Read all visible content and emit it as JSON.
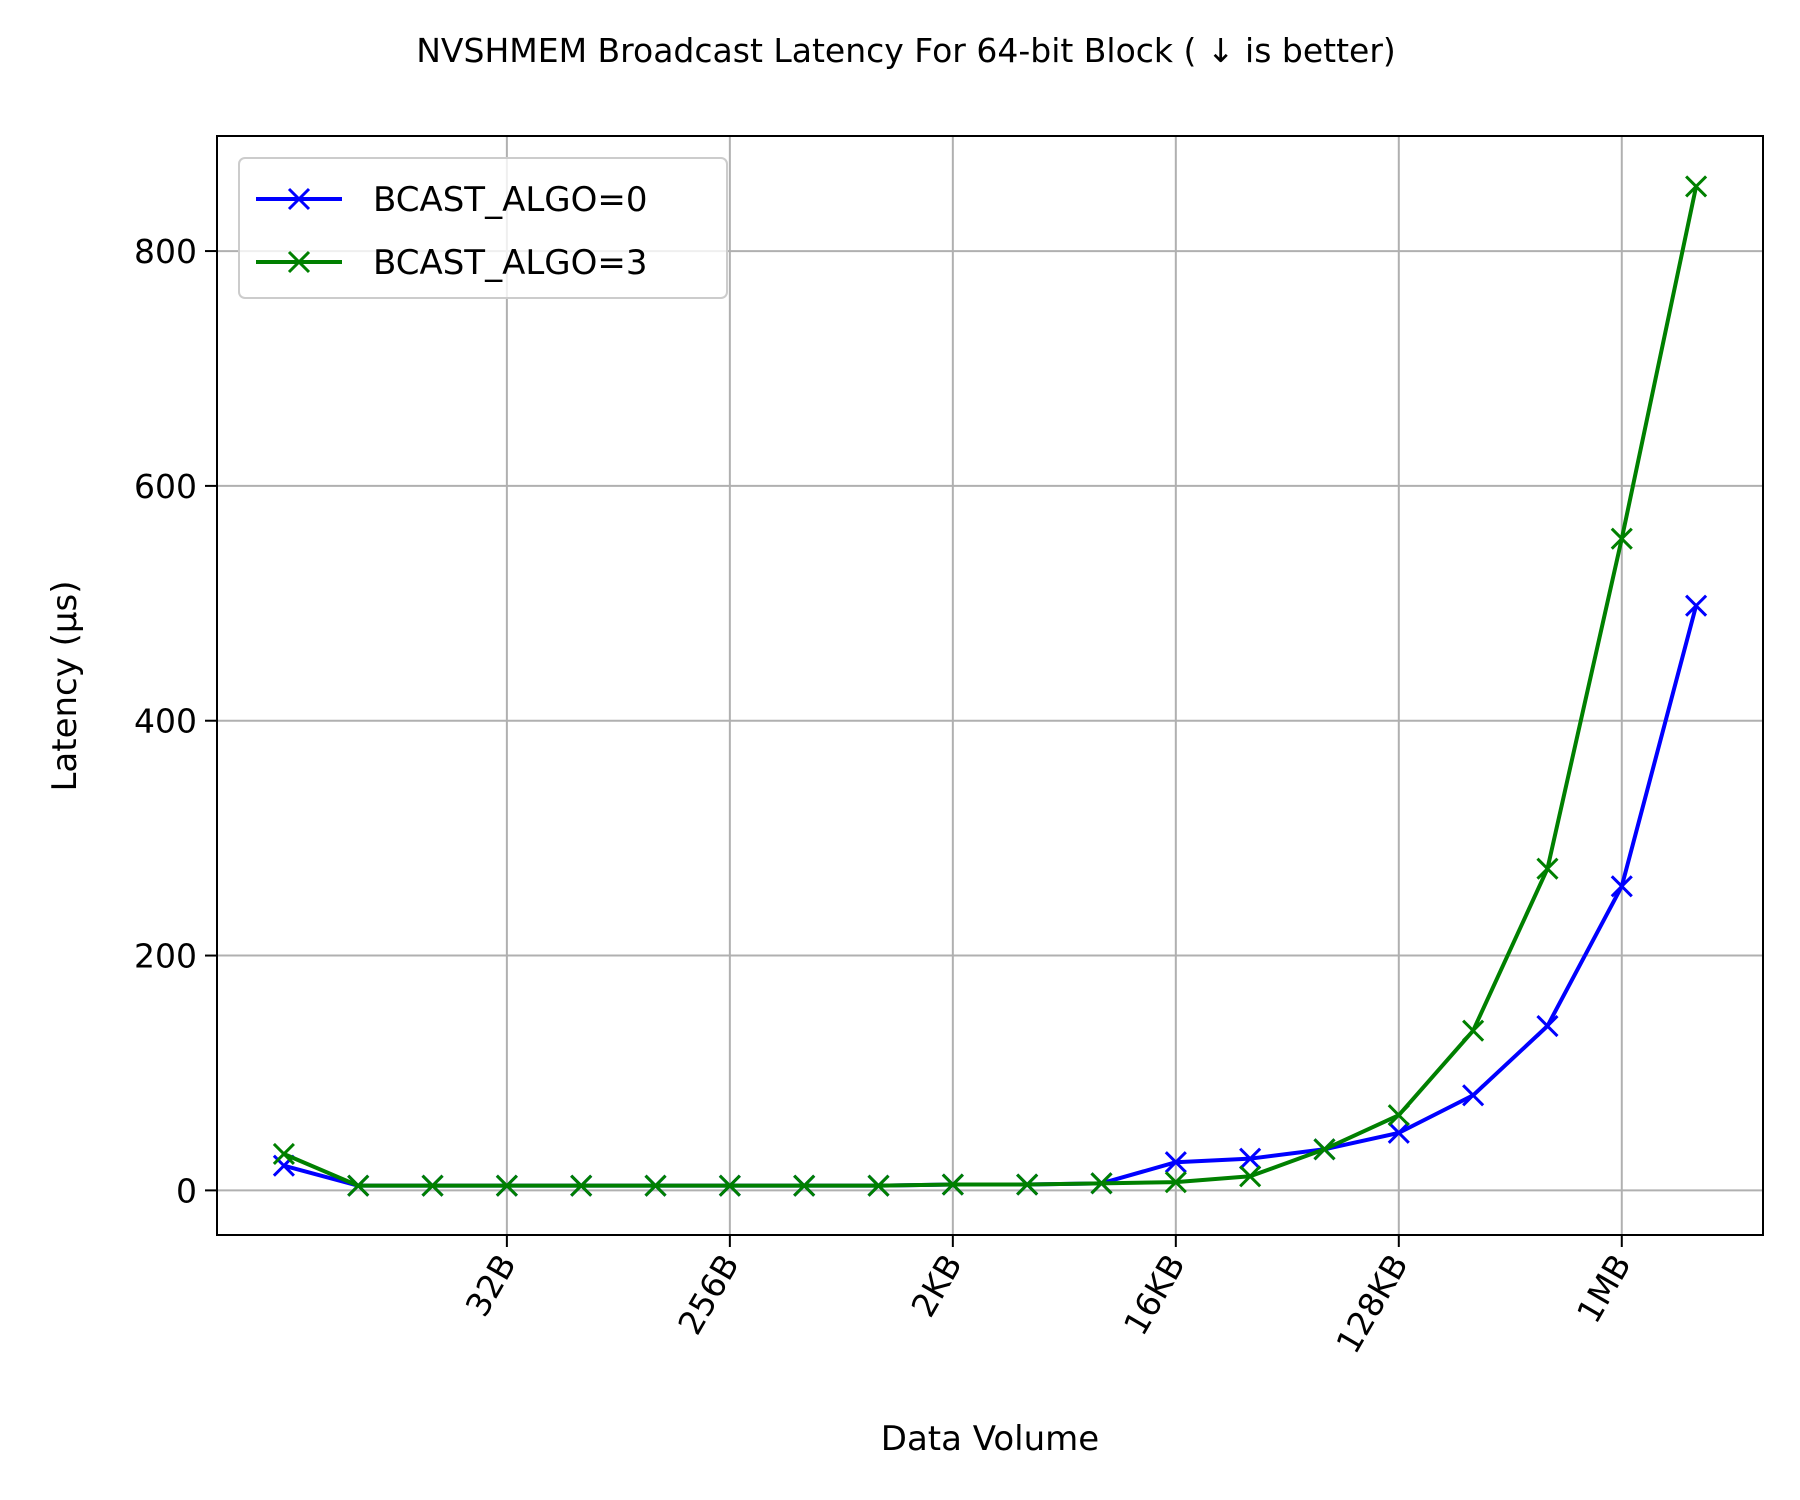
{
  "chart_data": {
    "type": "line",
    "title": "NVSHMEM Broadcast Latency For 64-bit Block ( ↓  is better)",
    "xlabel": "Data Volume",
    "ylabel": "Latency (μs)",
    "x_scale": "log2",
    "x_bytes": [
      4,
      8,
      16,
      32,
      64,
      128,
      256,
      512,
      1024,
      2048,
      4096,
      8192,
      16384,
      32768,
      65536,
      131072,
      262144,
      524288,
      1048576,
      2097152
    ],
    "xlim_log2": [
      1.1,
      21.9
    ],
    "ylim": [
      -38,
      898
    ],
    "xticks": [
      {
        "log2": 5,
        "label": "32B"
      },
      {
        "log2": 8,
        "label": "256B"
      },
      {
        "log2": 11,
        "label": "2KB"
      },
      {
        "log2": 14,
        "label": "16KB"
      },
      {
        "log2": 17,
        "label": "128KB"
      },
      {
        "log2": 20,
        "label": "1MB"
      }
    ],
    "yticks": [
      {
        "value": 0,
        "label": "0"
      },
      {
        "value": 200,
        "label": "200"
      },
      {
        "value": 400,
        "label": "400"
      },
      {
        "value": 600,
        "label": "600"
      },
      {
        "value": 800,
        "label": "800"
      }
    ],
    "grid": true,
    "legend_position": "upper-left",
    "series": [
      {
        "name": "BCAST_ALGO=0",
        "color": "#0000ff",
        "marker": "x",
        "values": [
          21,
          4,
          4,
          4,
          4,
          4,
          4,
          4,
          4,
          5,
          5,
          6,
          24,
          27,
          35,
          49,
          81,
          140,
          259,
          498
        ]
      },
      {
        "name": "BCAST_ALGO=3",
        "color": "#008000",
        "marker": "x",
        "values": [
          31,
          4,
          4,
          4,
          4,
          4,
          4,
          4,
          4,
          5,
          5,
          6,
          7,
          12,
          35,
          64,
          136,
          274,
          555,
          855
        ]
      }
    ]
  }
}
